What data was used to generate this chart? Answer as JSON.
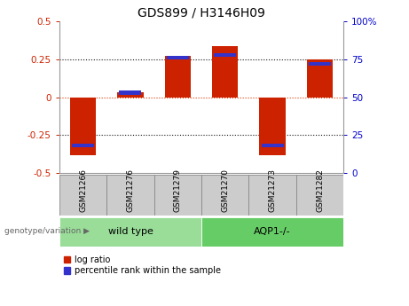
{
  "title": "GDS899 / H3146H09",
  "samples": [
    "GSM21266",
    "GSM21276",
    "GSM21279",
    "GSM21270",
    "GSM21273",
    "GSM21282"
  ],
  "log_ratios": [
    -0.385,
    0.03,
    0.27,
    0.335,
    -0.385,
    0.25
  ],
  "percentile_ranks": [
    18,
    53,
    76,
    78,
    18,
    72
  ],
  "ylim_left": [
    -0.5,
    0.5
  ],
  "ylim_right": [
    0,
    100
  ],
  "left_ticks": [
    -0.5,
    -0.25,
    0,
    0.25,
    0.5
  ],
  "right_ticks": [
    0,
    25,
    50,
    75,
    100
  ],
  "left_tick_labels": [
    "-0.5",
    "-0.25",
    "0",
    "0.25",
    "0.5"
  ],
  "right_tick_labels": [
    "0",
    "25",
    "50",
    "75",
    "100%"
  ],
  "dotted_lines": [
    -0.25,
    0,
    0.25
  ],
  "bar_color_red": "#cc2200",
  "bar_color_blue": "#3333cc",
  "bar_width": 0.55,
  "groups": [
    {
      "label": "wild type",
      "indices": [
        0,
        1,
        2
      ],
      "color": "#99dd99"
    },
    {
      "label": "AQP1-/-",
      "indices": [
        3,
        4,
        5
      ],
      "color": "#66cc66"
    }
  ],
  "xlabel_group": "genotype/variation",
  "legend_red": "log ratio",
  "legend_blue": "percentile rank within the sample",
  "plot_bg": "#ffffff",
  "spine_color": "#999999",
  "zero_line_color": "#dd3300",
  "grid_color": "#111111",
  "tick_label_color_left": "#cc2200",
  "tick_label_color_right": "#0000cc",
  "sample_box_color": "#cccccc",
  "title_fontsize": 10,
  "tick_fontsize": 7.5,
  "sample_fontsize": 6.5,
  "group_fontsize": 8,
  "legend_fontsize": 7
}
